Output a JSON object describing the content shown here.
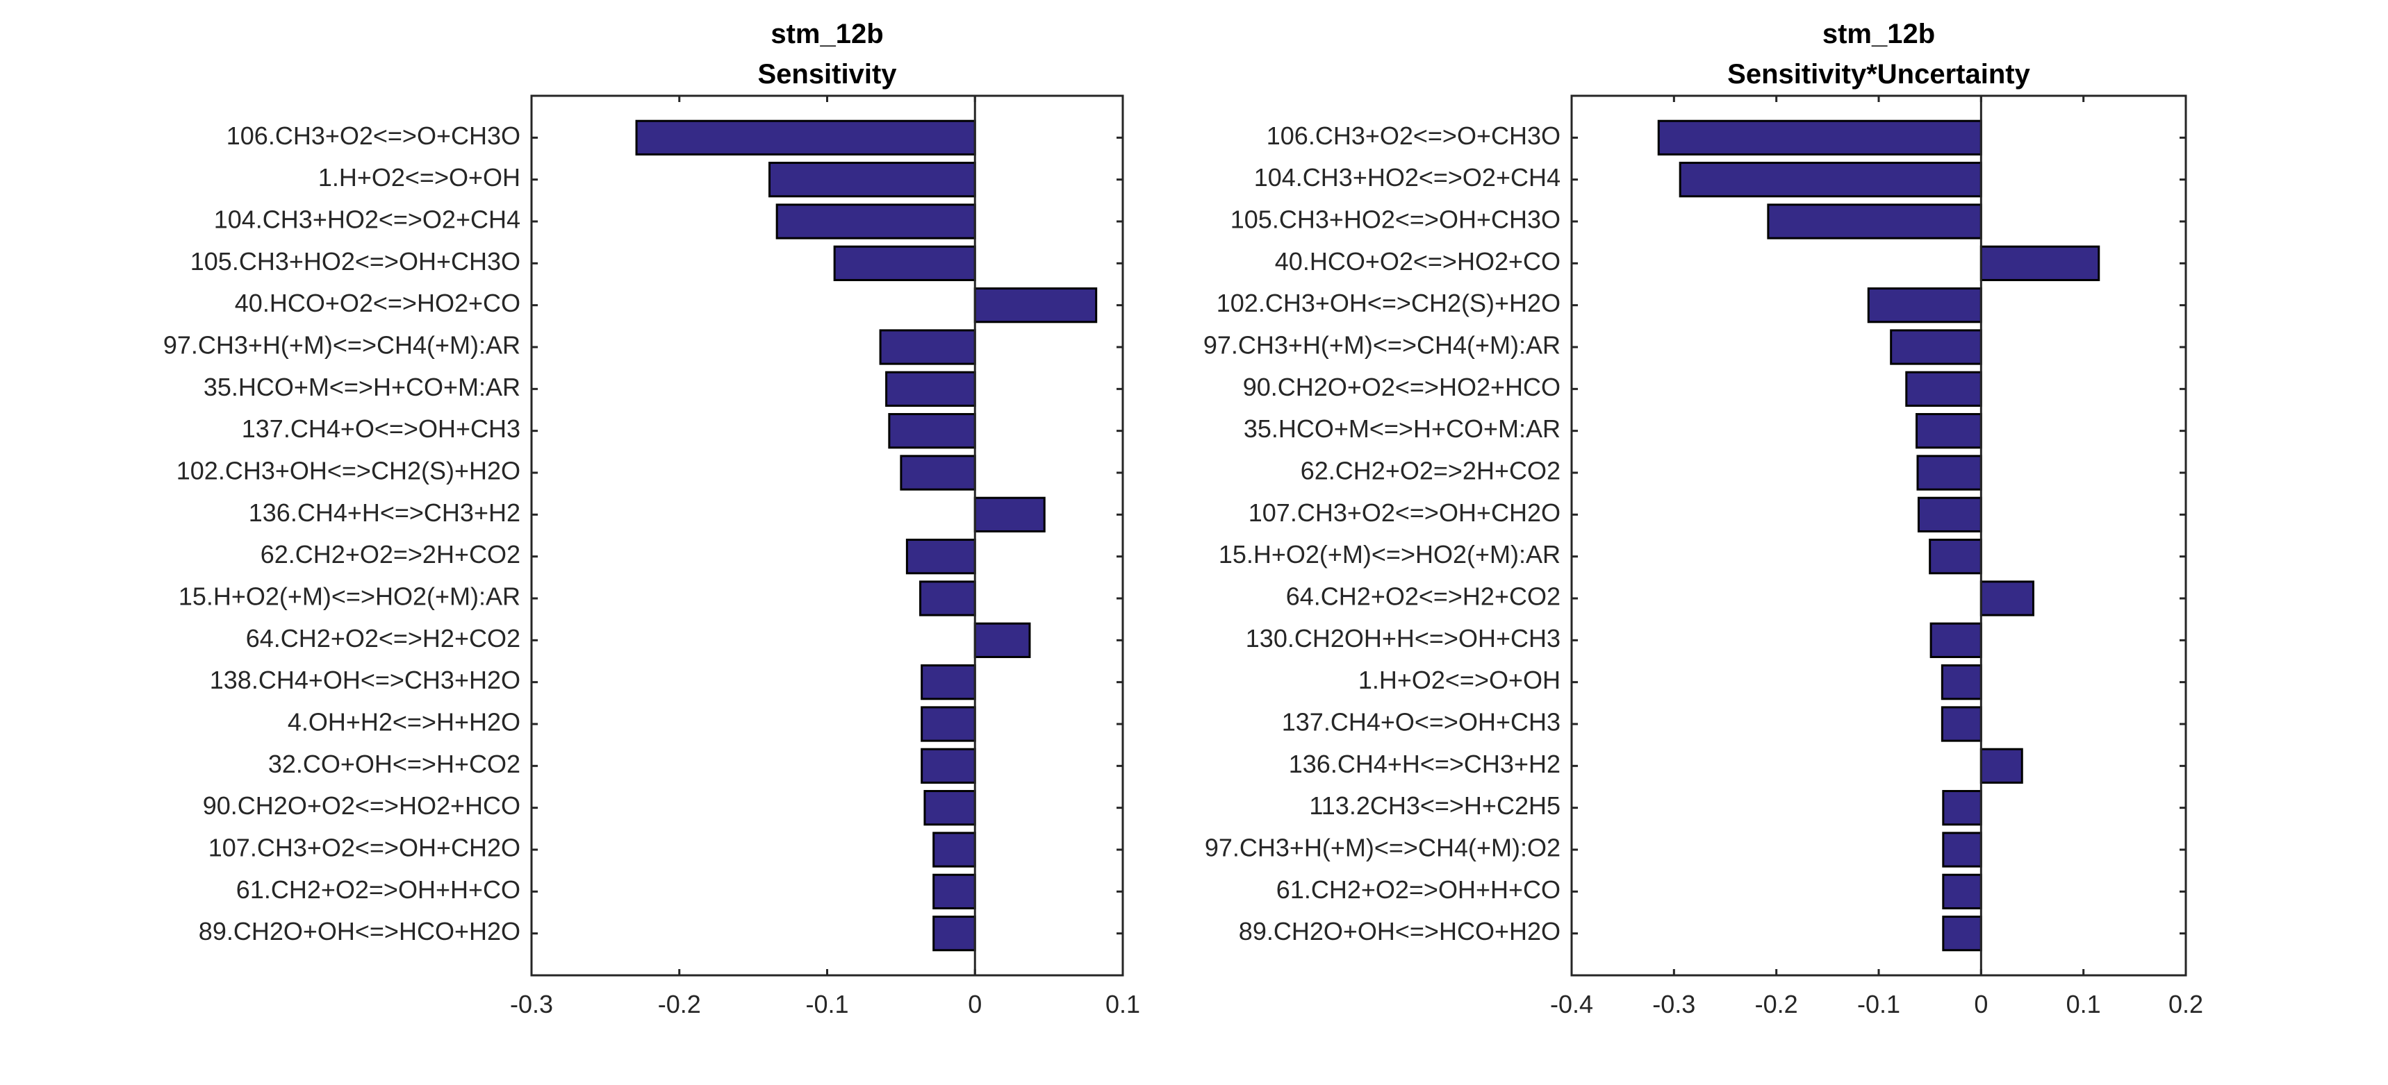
{
  "chart_data": [
    {
      "type": "bar",
      "orientation": "horizontal",
      "title": [
        "stm_12b",
        "Sensitivity"
      ],
      "xlim": [
        -0.3,
        0.1
      ],
      "xticks": [
        -0.3,
        -0.2,
        -0.1,
        0,
        0.1
      ],
      "xtick_labels": [
        "-0.3",
        "-0.2",
        "-0.1",
        "0",
        "0.1"
      ],
      "grid": false,
      "bar_color": "#352a87",
      "categories": [
        "106.CH3+O2<=>O+CH3O",
        "1.H+O2<=>O+OH",
        "104.CH3+HO2<=>O2+CH4",
        "105.CH3+HO2<=>OH+CH3O",
        "40.HCO+O2<=>HO2+CO",
        "97.CH3+H(+M)<=>CH4(+M):AR",
        "35.HCO+M<=>H+CO+M:AR",
        "137.CH4+O<=>OH+CH3",
        "102.CH3+OH<=>CH2(S)+H2O",
        "136.CH4+H<=>CH3+H2",
        "62.CH2+O2=>2H+CO2",
        "15.H+O2(+M)<=>HO2(+M):AR",
        "64.CH2+O2<=>H2+CO2",
        "138.CH4+OH<=>CH3+H2O",
        "4.OH+H2<=>H+H2O",
        "32.CO+OH<=>H+CO2",
        "90.CH2O+O2<=>HO2+HCO",
        "107.CH3+O2<=>OH+CH2O",
        "61.CH2+O2=>OH+H+CO",
        "89.CH2O+OH<=>HCO+H2O"
      ],
      "values": [
        -0.229,
        -0.139,
        -0.134,
        -0.095,
        0.082,
        -0.064,
        -0.06,
        -0.058,
        -0.05,
        0.047,
        -0.046,
        -0.037,
        0.037,
        -0.036,
        -0.036,
        -0.036,
        -0.034,
        -0.028,
        -0.028,
        -0.028
      ]
    },
    {
      "type": "bar",
      "orientation": "horizontal",
      "title": [
        "stm_12b",
        "Sensitivity*Uncertainty"
      ],
      "xlim": [
        -0.4,
        0.2
      ],
      "xticks": [
        -0.4,
        -0.3,
        -0.2,
        -0.1,
        0,
        0.1,
        0.2
      ],
      "xtick_labels": [
        "-0.4",
        "-0.3",
        "-0.2",
        "-0.1",
        "0",
        "0.1",
        "0.2"
      ],
      "grid": false,
      "bar_color": "#352a87",
      "categories": [
        "106.CH3+O2<=>O+CH3O",
        "104.CH3+HO2<=>O2+CH4",
        "105.CH3+HO2<=>OH+CH3O",
        "40.HCO+O2<=>HO2+CO",
        "102.CH3+OH<=>CH2(S)+H2O",
        "97.CH3+H(+M)<=>CH4(+M):AR",
        "90.CH2O+O2<=>HO2+HCO",
        "35.HCO+M<=>H+CO+M:AR",
        "62.CH2+O2=>2H+CO2",
        "107.CH3+O2<=>OH+CH2O",
        "15.H+O2(+M)<=>HO2(+M):AR",
        "64.CH2+O2<=>H2+CO2",
        "130.CH2OH+H<=>OH+CH3",
        "1.H+O2<=>O+OH",
        "137.CH4+O<=>OH+CH3",
        "136.CH4+H<=>CH3+H2",
        "113.2CH3<=>H+C2H5",
        "97.CH3+H(+M)<=>CH4(+M):O2",
        "61.CH2+O2=>OH+H+CO",
        "89.CH2O+OH<=>HCO+H2O"
      ],
      "values": [
        -0.315,
        -0.294,
        -0.208,
        0.115,
        -0.11,
        -0.088,
        -0.073,
        -0.063,
        -0.062,
        -0.061,
        -0.05,
        0.051,
        -0.049,
        -0.038,
        -0.038,
        0.04,
        -0.037,
        -0.037,
        -0.037,
        -0.037
      ]
    }
  ]
}
